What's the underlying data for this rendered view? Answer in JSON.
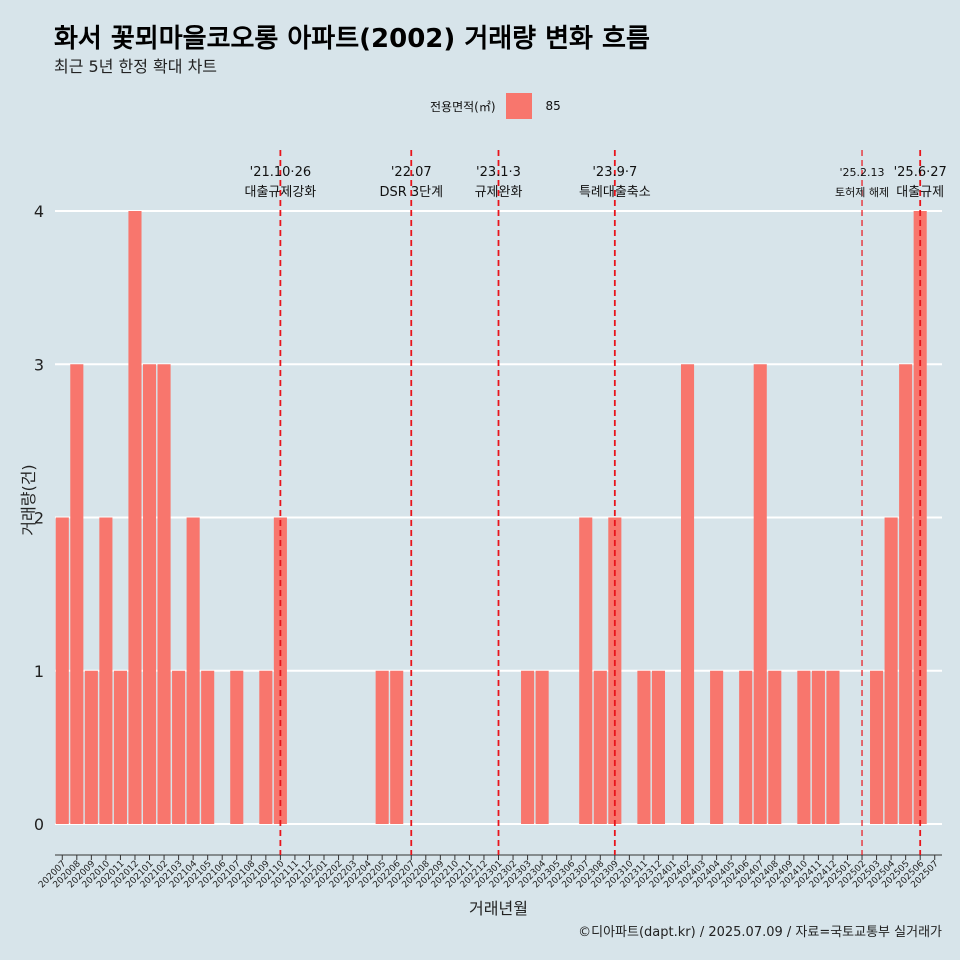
{
  "header": {
    "title": "화서 꽃뫼마을코오롱 아파트(2002) 거래량 변화 흐름",
    "subtitle": "최근 5년 한정 확대 차트"
  },
  "legend": {
    "title": "전용면적(㎡)",
    "label": "85",
    "color": "#f8766d"
  },
  "footer": {
    "credit": "©디아파트(dapt.kr) / 2025.07.09 / 자료=국토교통부 실거래가"
  },
  "chart_data": {
    "type": "bar",
    "xlabel": "거래년월",
    "ylabel": "거래량(건)",
    "ylim": [
      0,
      4
    ],
    "yticks": [
      0,
      1,
      2,
      3,
      4
    ],
    "grid": true,
    "bar_color": "#f8766d",
    "categories": [
      "202007",
      "202008",
      "202009",
      "202010",
      "202011",
      "202012",
      "202101",
      "202102",
      "202103",
      "202104",
      "202105",
      "202106",
      "202107",
      "202108",
      "202109",
      "202110",
      "202111",
      "202112",
      "202201",
      "202202",
      "202203",
      "202204",
      "202205",
      "202206",
      "202207",
      "202208",
      "202209",
      "202210",
      "202211",
      "202212",
      "202301",
      "202302",
      "202303",
      "202304",
      "202305",
      "202306",
      "202307",
      "202308",
      "202309",
      "202310",
      "202311",
      "202312",
      "202401",
      "202402",
      "202403",
      "202404",
      "202405",
      "202406",
      "202407",
      "202408",
      "202409",
      "202410",
      "202411",
      "202412",
      "202501",
      "202502",
      "202503",
      "202504",
      "202505",
      "202506",
      "202507"
    ],
    "series": [
      {
        "name": "85",
        "values": [
          2,
          3,
          1,
          2,
          1,
          4,
          3,
          3,
          1,
          2,
          1,
          0,
          1,
          0,
          1,
          2,
          0,
          0,
          0,
          0,
          0,
          0,
          1,
          1,
          0,
          0,
          0,
          0,
          0,
          0,
          0,
          0,
          1,
          1,
          0,
          0,
          2,
          1,
          2,
          0,
          1,
          1,
          0,
          3,
          0,
          1,
          0,
          1,
          3,
          1,
          0,
          1,
          1,
          1,
          0,
          0,
          1,
          2,
          3,
          4,
          0
        ]
      }
    ],
    "annotations": [
      {
        "date": "'21.10·26",
        "label": "대출규제강화",
        "at": "202110",
        "style": "bold"
      },
      {
        "date": "'22.07",
        "label": "DSR 3단계",
        "at": "202207",
        "style": "bold"
      },
      {
        "date": "'23.1·3",
        "label": "규제완화",
        "at": "202301",
        "style": "bold"
      },
      {
        "date": "'23.9·7",
        "label": "특례대출축소",
        "at": "202309",
        "style": "bold"
      },
      {
        "date": "'25.2.13",
        "label": "토허제 해제",
        "at": "202502",
        "style": "thin"
      },
      {
        "date": "'25.6·27",
        "label": "대출규제",
        "at": "202506",
        "style": "bold"
      }
    ]
  }
}
